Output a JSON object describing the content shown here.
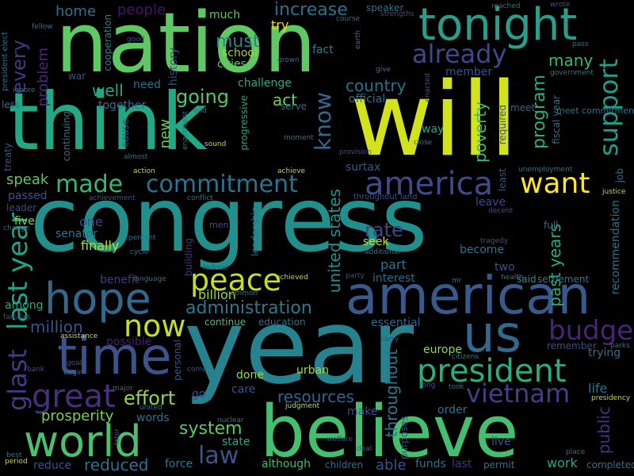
{
  "words": [
    {
      "text": "congress",
      "color": "#21908d"
    },
    {
      "text": "year",
      "color": "#26828e"
    },
    {
      "text": "will",
      "color": "#d2e21b"
    },
    {
      "text": "think",
      "color": "#22a884"
    },
    {
      "text": "nation",
      "color": "#5ec962"
    },
    {
      "text": "believe",
      "color": "#44bf70"
    },
    {
      "text": "american",
      "color": "#38598c"
    },
    {
      "text": "time",
      "color": "#3b528b"
    },
    {
      "text": "tonight",
      "color": "#2a9d8a"
    },
    {
      "text": "world",
      "color": "#4ac16d"
    },
    {
      "text": "president",
      "color": "#29af7f"
    },
    {
      "text": "great",
      "color": "#472f7d"
    },
    {
      "text": "us",
      "color": "#31688e"
    },
    {
      "text": "hope",
      "color": "#31688e"
    },
    {
      "text": "america",
      "color": "#3e4a89"
    },
    {
      "text": "peace",
      "color": "#c2df23"
    },
    {
      "text": "want",
      "color": "#fde725"
    },
    {
      "text": "last year",
      "color": "#20a386"
    },
    {
      "text": "now",
      "color": "#bddf26"
    },
    {
      "text": "budget",
      "color": "#482475"
    },
    {
      "text": "vietnam",
      "color": "#433e85"
    },
    {
      "text": "made",
      "color": "#35b779"
    },
    {
      "text": "commitment",
      "color": "#2c728e"
    },
    {
      "text": "glast",
      "color": "#443983"
    },
    {
      "text": "already",
      "color": "#3e4989"
    },
    {
      "text": "support",
      "color": "#1f9e89"
    },
    {
      "text": "law",
      "color": "#3b528b"
    },
    {
      "text": "know",
      "color": "#31688e"
    },
    {
      "text": "every",
      "color": "#453781"
    },
    {
      "text": "effort",
      "color": "#8fd744"
    },
    {
      "text": "system",
      "color": "#5ec962"
    },
    {
      "text": "administration",
      "color": "#2a788e"
    },
    {
      "text": "united states",
      "color": "#21918c"
    },
    {
      "text": "throughout",
      "color": "#2a788e"
    },
    {
      "text": "program",
      "color": "#29af7f"
    },
    {
      "text": "going",
      "color": "#56c667"
    },
    {
      "text": "rate",
      "color": "#404688"
    },
    {
      "text": "prosperity",
      "color": "#7ad151"
    },
    {
      "text": "million",
      "color": "#3b528b"
    },
    {
      "text": "billion",
      "color": "#9dd93b"
    },
    {
      "text": "past years",
      "color": "#26ad81"
    },
    {
      "text": "public",
      "color": "#46337f"
    },
    {
      "text": "resources",
      "color": "#32658e"
    },
    {
      "text": "increase",
      "color": "#2c728e"
    },
    {
      "text": "many",
      "color": "#32b67a"
    },
    {
      "text": "must",
      "color": "#25848e"
    },
    {
      "text": "speak",
      "color": "#5ec962"
    },
    {
      "text": "reduced",
      "color": "#2c728e"
    },
    {
      "text": "country",
      "color": "#2c718e"
    },
    {
      "text": "poverty",
      "color": "#3aba76"
    },
    {
      "text": "act",
      "color": "#70cf57"
    },
    {
      "text": "well",
      "color": "#22a884"
    },
    {
      "text": "new",
      "color": "#6ccd5a"
    },
    {
      "text": "finally",
      "color": "#b5de2b"
    },
    {
      "text": "home",
      "color": "#2c728e"
    },
    {
      "text": "people",
      "color": "#481467"
    },
    {
      "text": "problem",
      "color": "#482878"
    },
    {
      "text": "one",
      "color": "#3e4a89"
    },
    {
      "text": "much",
      "color": "#5ec962"
    },
    {
      "text": "school",
      "color": "#9bd93c"
    },
    {
      "text": "cities",
      "color": "#5ec962"
    },
    {
      "text": "try",
      "color": "#dfe318"
    },
    {
      "text": "fact",
      "color": "#27808e"
    },
    {
      "text": "challenge",
      "color": "#25ab82"
    },
    {
      "text": "history",
      "color": "#3e4a89"
    },
    {
      "text": "need",
      "color": "#2d708e"
    },
    {
      "text": "together",
      "color": "#2d708e"
    },
    {
      "text": "cooperation",
      "color": "#24868e"
    },
    {
      "text": "member",
      "color": "#3b528b"
    },
    {
      "text": "official",
      "color": "#2c728e"
    },
    {
      "text": "surtax",
      "color": "#39568c"
    },
    {
      "text": "seek",
      "color": "#bddf26"
    },
    {
      "text": "part",
      "color": "#2c718e"
    },
    {
      "text": "interest",
      "color": "#31688e"
    },
    {
      "text": "become",
      "color": "#2c728e"
    },
    {
      "text": "two",
      "color": "#3b528b"
    },
    {
      "text": "leave",
      "color": "#3e4a89"
    },
    {
      "text": "full",
      "color": "#2c728e"
    },
    {
      "text": "way",
      "color": "#22a884"
    },
    {
      "text": "meet",
      "color": "#31688e"
    },
    {
      "text": "said",
      "color": "#21918c"
    },
    {
      "text": "settlement",
      "color": "#2a788e"
    },
    {
      "text": "recommendation",
      "color": "#2c728e"
    },
    {
      "text": "leadership",
      "color": "#2a788e"
    },
    {
      "text": "building",
      "color": "#46337f"
    },
    {
      "text": "progressive",
      "color": "#22a884"
    },
    {
      "text": "continuing",
      "color": "#2c728e"
    },
    {
      "text": "cause",
      "color": "#3b528b"
    },
    {
      "text": "passed",
      "color": "#3b528b"
    },
    {
      "text": "five",
      "color": "#7fd34e"
    },
    {
      "text": "senator",
      "color": "#2c728e"
    },
    {
      "text": "leader",
      "color": "#3e4a89"
    },
    {
      "text": "among",
      "color": "#22a884"
    },
    {
      "text": "benefit",
      "color": "#443a83"
    },
    {
      "text": "essential",
      "color": "#32658e"
    },
    {
      "text": "continue",
      "color": "#4ac16d"
    },
    {
      "text": "education",
      "color": "#2c728e"
    },
    {
      "text": "possible",
      "color": "#481f70"
    },
    {
      "text": "europe",
      "color": "#8fd744"
    },
    {
      "text": "trying",
      "color": "#2c728e"
    },
    {
      "text": "remember",
      "color": "#3e4a89"
    },
    {
      "text": "life",
      "color": "#2c728e"
    },
    {
      "text": "urban",
      "color": "#a5db36"
    },
    {
      "text": "done",
      "color": "#9bd93c"
    },
    {
      "text": "care",
      "color": "#3b528b"
    },
    {
      "text": "order",
      "color": "#2c728e"
    },
    {
      "text": "go",
      "color": "#3e4a89"
    },
    {
      "text": "make",
      "color": "#3b528b"
    },
    {
      "text": "words",
      "color": "#2c728e"
    },
    {
      "text": "state",
      "color": "#22a884"
    },
    {
      "text": "force",
      "color": "#2a788e"
    },
    {
      "text": "although",
      "color": "#3aba76"
    },
    {
      "text": "reduce",
      "color": "#3b528b"
    },
    {
      "text": "children",
      "color": "#2d708e"
    },
    {
      "text": "able",
      "color": "#3b528b"
    },
    {
      "text": "funds",
      "color": "#2c728e"
    },
    {
      "text": "last",
      "color": "#46337f"
    },
    {
      "text": "permit",
      "color": "#2c728e"
    },
    {
      "text": "work",
      "color": "#22a884"
    },
    {
      "text": "completed",
      "color": "#2c728e"
    },
    {
      "text": "live",
      "color": "#3b528b"
    },
    {
      "text": "personal",
      "color": "#3b528b"
    },
    {
      "text": "purposes",
      "color": "#3e4a89"
    },
    {
      "text": "job",
      "color": "#2c728e"
    },
    {
      "text": "fiscal year",
      "color": "#2c728e"
    },
    {
      "text": "required",
      "color": "#3e4a89"
    },
    {
      "text": "least",
      "color": "#3b528b"
    },
    {
      "text": "meet commitments",
      "color": "#2c728e"
    },
    {
      "text": "speaker",
      "color": "#2c728e"
    },
    {
      "text": "strengths",
      "color": "#3b528b"
    },
    {
      "text": "reached",
      "color": "#2c728e"
    },
    {
      "text": "wrote",
      "color": "#3b528b"
    },
    {
      "text": "pass",
      "color": "#2c728e"
    },
    {
      "text": "throughout land",
      "color": "#3b528b"
    },
    {
      "text": "unemployment",
      "color": "#2c728e"
    },
    {
      "text": "justice",
      "color": "#bddf26"
    },
    {
      "text": "decent",
      "color": "#3b528b"
    },
    {
      "text": "tragedy",
      "color": "#3b528b"
    },
    {
      "text": "health",
      "color": "#2c728e"
    },
    {
      "text": "mr",
      "color": "#2c728e"
    },
    {
      "text": "presidency",
      "color": "#bddf26"
    },
    {
      "text": "parks",
      "color": "#2c728e"
    },
    {
      "text": "place",
      "color": "#2c728e"
    },
    {
      "text": "citizens",
      "color": "#2c728e"
    },
    {
      "text": "carry",
      "color": "#3b528b"
    },
    {
      "text": "took",
      "color": "#2c728e"
    },
    {
      "text": "long",
      "color": "#3b528b"
    },
    {
      "text": "deal",
      "color": "#2c728e"
    },
    {
      "text": "welfare",
      "color": "#3b528b"
    },
    {
      "text": "judgment",
      "color": "#bddf26"
    },
    {
      "text": "nuclear",
      "color": "#2c728e"
    },
    {
      "text": "federal",
      "color": "#3b528b"
    },
    {
      "text": "common",
      "color": "#2c728e"
    },
    {
      "text": "achieved",
      "color": "#bddf26"
    },
    {
      "text": "party",
      "color": "#3b528b"
    },
    {
      "text": "language",
      "color": "#2c728e"
    },
    {
      "text": "cycle",
      "color": "#2c728e"
    },
    {
      "text": "percent",
      "color": "#2c728e"
    },
    {
      "text": "men",
      "color": "#3b528b"
    },
    {
      "text": "achievement",
      "color": "#3b528b"
    },
    {
      "text": "conflict",
      "color": "#2c728e"
    },
    {
      "text": "achieve",
      "color": "#bddf26"
    },
    {
      "text": "action",
      "color": "#bddf26"
    },
    {
      "text": "almost",
      "color": "#2c728e"
    },
    {
      "text": "sound",
      "color": "#bddf26"
    },
    {
      "text": "moment",
      "color": "#2c728e"
    },
    {
      "text": "close",
      "color": "#2c728e"
    },
    {
      "text": "provision",
      "color": "#3b528b"
    },
    {
      "text": "serve",
      "color": "#2c728e"
    },
    {
      "text": "enactment",
      "color": "#2c728e"
    },
    {
      "text": "end",
      "color": "#2c728e"
    },
    {
      "text": "war",
      "color": "#3b528b"
    },
    {
      "text": "ignore",
      "color": "#2c728e"
    },
    {
      "text": "less",
      "color": "#2c728e"
    },
    {
      "text": "treaty",
      "color": "#3b528b"
    },
    {
      "text": "change",
      "color": "#2c728e"
    },
    {
      "text": "families",
      "color": "#3b528b"
    },
    {
      "text": "assistance",
      "color": "#bddf26"
    },
    {
      "text": "goal",
      "color": "#3b528b"
    },
    {
      "text": "begin",
      "color": "#2c728e"
    },
    {
      "text": "bank",
      "color": "#3b528b"
    },
    {
      "text": "major",
      "color": "#2c728e"
    },
    {
      "text": "come",
      "color": "#3b528b"
    },
    {
      "text": "united",
      "color": "#2c728e"
    },
    {
      "text": "later",
      "color": "#3b528b"
    },
    {
      "text": "best",
      "color": "#2c728e"
    },
    {
      "text": "period",
      "color": "#bddf26"
    },
    {
      "text": "president elect",
      "color": "#2c728e"
    },
    {
      "text": "fellow",
      "color": "#2c728e"
    },
    {
      "text": "good",
      "color": "#3b528b"
    },
    {
      "text": "course",
      "color": "#2c728e"
    },
    {
      "text": "earth",
      "color": "#2c728e"
    },
    {
      "text": "grown",
      "color": "#2c728e"
    },
    {
      "text": "give",
      "color": "#2c728e"
    },
    {
      "text": "enacted",
      "color": "#3b528b"
    },
    {
      "text": "government",
      "color": "#2c728e"
    },
    {
      "text": "additional",
      "color": "#2c728e"
    }
  ]
}
